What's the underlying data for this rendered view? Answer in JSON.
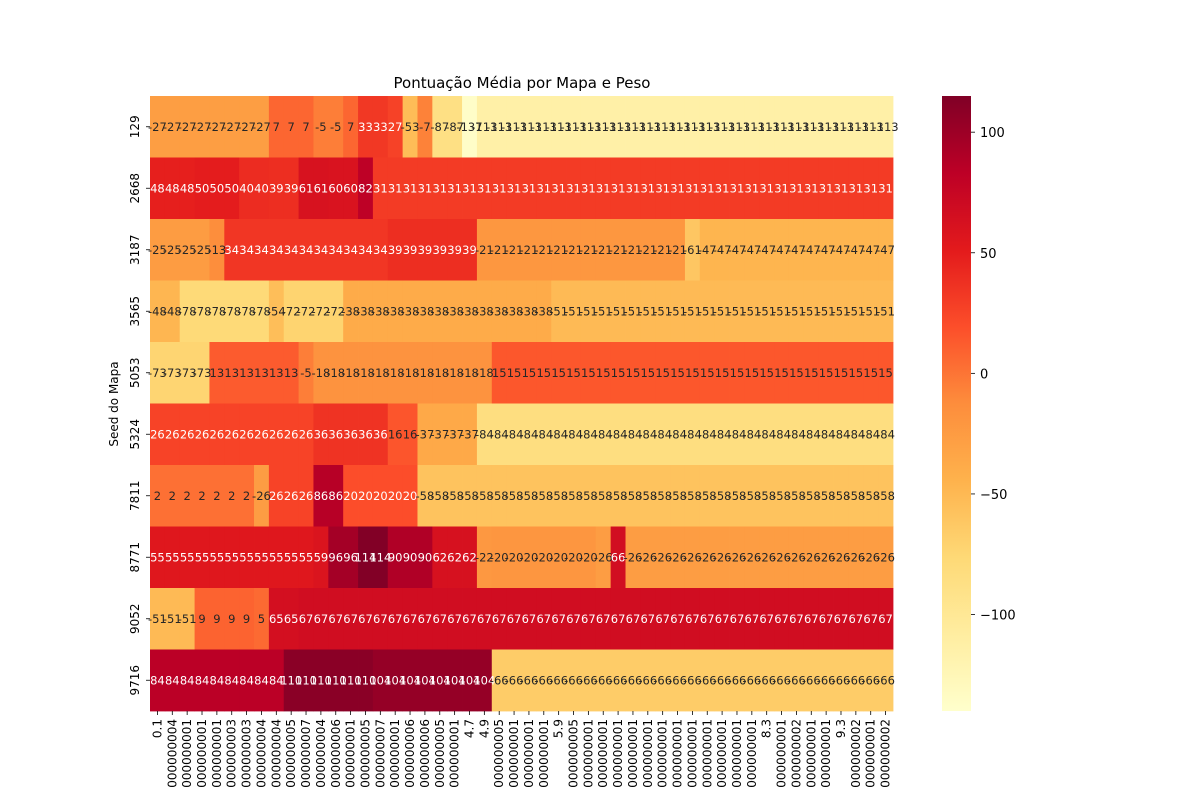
{
  "chart_data": {
    "type": "heatmap",
    "title": "Pontuação Média por Mapa e Peso",
    "ylabel": "Seed do Mapa",
    "xlabel": "",
    "cmap": "YlOrRd",
    "vmin": -140,
    "vmax": 115,
    "colorbar_ticks": [
      100,
      50,
      0,
      -50,
      -100
    ],
    "colorbar_tick_labels": [
      "100",
      "50",
      "0",
      "−50",
      "−100"
    ],
    "columns": 50,
    "x_tick_labels": [
      "0.1",
      "000000004",
      "000000001",
      "000000001",
      "000000001",
      "000000003",
      "000000003",
      "000000004",
      "000000004",
      "000000005",
      "000000007",
      "000000004",
      "000000006",
      "000000001",
      "000000005",
      "000000007",
      "000000001",
      "000000006",
      "000000006",
      "000000005",
      "000000001",
      "4.7",
      "4.9",
      "000000005",
      "000000001",
      "000000001",
      "000000001",
      "5.9",
      "000000005",
      "000000001",
      "000000001",
      "000000001",
      "000000001",
      "000000001",
      "000000001",
      "000000001",
      "000000001",
      "000000001",
      "000000001",
      "000000001",
      "000000001",
      "8.3",
      "000000001",
      "000000002",
      "000000001",
      "000000001",
      "9.3",
      "000000002",
      "000000001",
      "000000002"
    ],
    "rows": [
      {
        "seed": "129",
        "values": [
          -27,
          -27,
          -27,
          -27,
          -27,
          -27,
          -27,
          -27,
          7,
          7,
          7,
          -5,
          -5,
          7,
          33,
          33,
          27,
          -53,
          -7,
          -87,
          -87,
          -137,
          -113,
          -113,
          -113,
          -113,
          -113,
          -113,
          -113,
          -113,
          -113,
          -113,
          -113,
          -113,
          -113,
          -113,
          -113,
          -113,
          -113,
          -113,
          -113,
          -113,
          -113,
          -113,
          -113,
          -113,
          -113,
          -113,
          -113,
          -113
        ]
      },
      {
        "seed": "2668",
        "values": [
          48,
          48,
          48,
          50,
          50,
          50,
          40,
          40,
          39,
          39,
          61,
          61,
          60,
          60,
          82,
          31,
          31,
          31,
          31,
          31,
          31,
          31,
          31,
          31,
          31,
          31,
          31,
          31,
          31,
          31,
          31,
          31,
          31,
          31,
          31,
          31,
          31,
          31,
          31,
          31,
          31,
          31,
          31,
          31,
          31,
          31,
          31,
          31,
          31,
          31
        ]
      },
      {
        "seed": "3187",
        "values": [
          -25,
          -25,
          -25,
          -25,
          -13,
          34,
          34,
          34,
          34,
          34,
          34,
          34,
          34,
          34,
          34,
          34,
          39,
          39,
          39,
          39,
          39,
          39,
          -21,
          -21,
          -21,
          -21,
          -21,
          -21,
          -21,
          -21,
          -21,
          -21,
          -21,
          -21,
          -21,
          -21,
          -61,
          -47,
          -47,
          -47,
          -47,
          -47,
          -47,
          -47,
          -47,
          -47,
          -47,
          -47,
          -47,
          -47
        ]
      },
      {
        "seed": "3565",
        "values": [
          -48,
          -48,
          -78,
          -78,
          -78,
          -78,
          -78,
          -78,
          -54,
          -72,
          -72,
          -72,
          -72,
          -38,
          -38,
          -38,
          -38,
          -38,
          -38,
          -38,
          -38,
          -38,
          -38,
          -38,
          -38,
          -38,
          -38,
          -51,
          -51,
          -51,
          -51,
          -51,
          -51,
          -51,
          -51,
          -51,
          -51,
          -51,
          -51,
          -51,
          -51,
          -51,
          -51,
          -51,
          -51,
          -51,
          -51,
          -51,
          -51,
          -51
        ]
      },
      {
        "seed": "5053",
        "values": [
          -73,
          -73,
          -73,
          -73,
          13,
          13,
          13,
          13,
          13,
          13,
          -5,
          -18,
          -18,
          -18,
          -18,
          -18,
          -18,
          -18,
          -18,
          -18,
          -18,
          -18,
          -18,
          15,
          15,
          15,
          15,
          15,
          15,
          15,
          15,
          15,
          15,
          15,
          15,
          15,
          15,
          15,
          15,
          15,
          15,
          15,
          15,
          15,
          15,
          15,
          15,
          15,
          15,
          15
        ]
      },
      {
        "seed": "5324",
        "values": [
          26,
          26,
          26,
          26,
          26,
          26,
          26,
          26,
          26,
          26,
          26,
          36,
          36,
          36,
          36,
          36,
          16,
          16,
          -37,
          -37,
          -37,
          -37,
          -84,
          -84,
          -84,
          -84,
          -84,
          -84,
          -84,
          -84,
          -84,
          -84,
          -84,
          -84,
          -84,
          -84,
          -84,
          -84,
          -84,
          -84,
          -84,
          -84,
          -84,
          -84,
          -84,
          -84,
          -84,
          -84,
          -84,
          -84
        ]
      },
      {
        "seed": "7811",
        "values": [
          2,
          2,
          2,
          2,
          2,
          2,
          2,
          -26,
          26,
          26,
          26,
          86,
          86,
          20,
          20,
          20,
          20,
          20,
          -58,
          -58,
          -58,
          -58,
          -58,
          -58,
          -58,
          -58,
          -58,
          -58,
          -58,
          -58,
          -58,
          -58,
          -58,
          -58,
          -58,
          -58,
          -58,
          -58,
          -58,
          -58,
          -58,
          -58,
          -58,
          -58,
          -58,
          -58,
          -58,
          -58,
          -58,
          -58
        ]
      },
      {
        "seed": "8771",
        "values": [
          55,
          55,
          55,
          55,
          55,
          55,
          55,
          55,
          55,
          55,
          55,
          59,
          96,
          96,
          114,
          114,
          90,
          90,
          90,
          62,
          62,
          62,
          -22,
          -20,
          -20,
          -20,
          -20,
          -20,
          -20,
          -20,
          -26,
          66,
          -26,
          -26,
          -26,
          -26,
          -26,
          -26,
          -26,
          -26,
          -26,
          -26,
          -26,
          -26,
          -26,
          -26,
          -26,
          -26,
          -26,
          -26
        ]
      },
      {
        "seed": "9052",
        "values": [
          -51,
          -51,
          -51,
          9,
          9,
          9,
          9,
          5,
          65,
          65,
          67,
          67,
          67,
          67,
          67,
          67,
          67,
          67,
          67,
          67,
          67,
          67,
          67,
          67,
          67,
          67,
          67,
          67,
          67,
          67,
          67,
          67,
          67,
          67,
          67,
          67,
          67,
          67,
          67,
          67,
          67,
          67,
          67,
          67,
          67,
          67,
          67,
          67,
          67,
          67
        ]
      },
      {
        "seed": "9716",
        "values": [
          84,
          84,
          84,
          84,
          84,
          84,
          84,
          84,
          84,
          110,
          110,
          110,
          110,
          110,
          110,
          104,
          104,
          104,
          104,
          104,
          104,
          104,
          104,
          -66,
          -66,
          -66,
          -66,
          -66,
          -66,
          -66,
          -66,
          -66,
          -66,
          -66,
          -66,
          -66,
          -66,
          -66,
          -66,
          -66,
          -66,
          -66,
          -66,
          -66,
          -66,
          -66,
          -66,
          -66,
          -66,
          -66
        ]
      }
    ]
  }
}
